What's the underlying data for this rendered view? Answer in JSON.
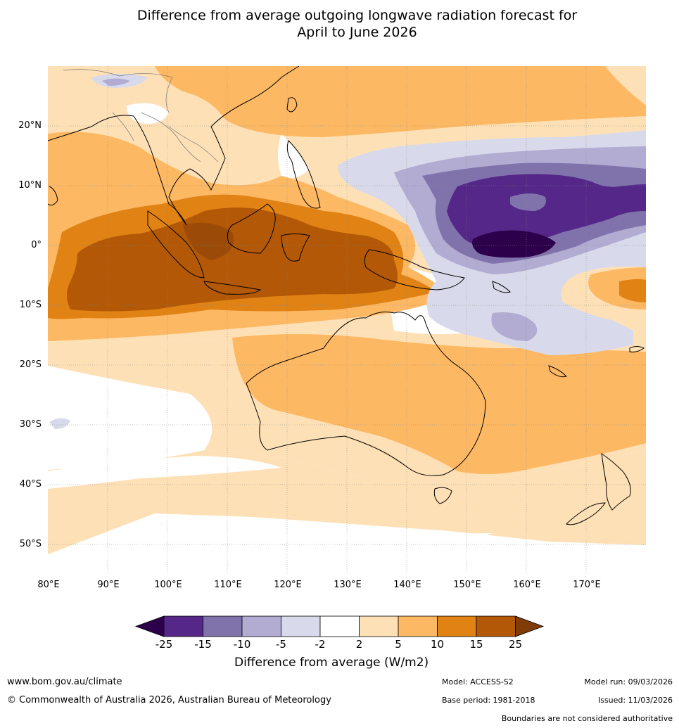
{
  "title": {
    "line1": "Difference from average outgoing longwave radiation forecast for",
    "line2": "April to June 2026"
  },
  "map": {
    "lat_labels": [
      "20°N",
      "10°N",
      "0°",
      "10°S",
      "20°S",
      "30°S",
      "40°S",
      "50°S"
    ],
    "lon_labels": [
      "80°E",
      "90°E",
      "100°E",
      "110°E",
      "120°E",
      "130°E",
      "140°E",
      "150°E",
      "160°E",
      "170°E"
    ],
    "lon_range": [
      80,
      180
    ],
    "lat_range": [
      -55,
      30
    ]
  },
  "colorbar": {
    "title": "Difference from average (W/m2)",
    "ticks": [
      "-25",
      "-15",
      "-10",
      "-5",
      "-2",
      "2",
      "5",
      "10",
      "15",
      "25"
    ],
    "colors": {
      "below": "#2d004b",
      "c1": "#542788",
      "c2": "#8073ac",
      "c3": "#b2abd2",
      "c4": "#d8daeb",
      "c5": "#ffffff",
      "c6": "#fee0b6",
      "c7": "#fdb863",
      "c8": "#e08214",
      "c9": "#b35806",
      "above": "#7f3b08"
    }
  },
  "footer": {
    "website": "www.bom.gov.au/climate",
    "copyright": "© Commonwealth of Australia 2026, Australian Bureau of Meteorology",
    "model": "Model: ACCESS-S2",
    "base_period": "Base period: 1981-2018",
    "model_run": "Model run: 09/03/2026",
    "issued": "Issued: 11/03/2026",
    "disclaimer": "Boundaries are not considered authoritative"
  }
}
